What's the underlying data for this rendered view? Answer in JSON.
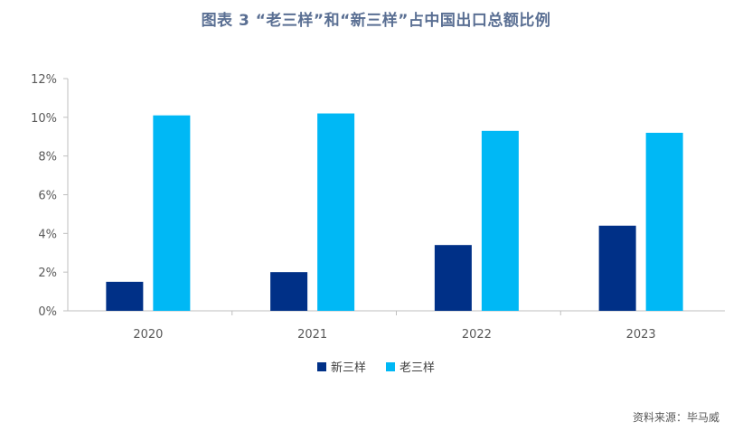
{
  "title": "图表 3 “老三样”和“新三样”占中国出口总额比例",
  "source": "资料来源：毕马威",
  "chart_data": {
    "type": "bar",
    "categories": [
      "2020",
      "2021",
      "2022",
      "2023"
    ],
    "series": [
      {
        "name": "新三样",
        "color": "#003087",
        "values": [
          1.5,
          2.0,
          3.4,
          4.4
        ]
      },
      {
        "name": "老三样",
        "color": "#00b8f5",
        "values": [
          10.1,
          10.2,
          9.3,
          9.2
        ]
      }
    ],
    "ylim": [
      0,
      12
    ],
    "yticks": [
      "0%",
      "2%",
      "4%",
      "6%",
      "8%",
      "10%",
      "12%"
    ],
    "ytick_values": [
      0,
      2,
      4,
      6,
      8,
      10,
      12
    ],
    "grid": false,
    "legend_position": "bottom"
  }
}
